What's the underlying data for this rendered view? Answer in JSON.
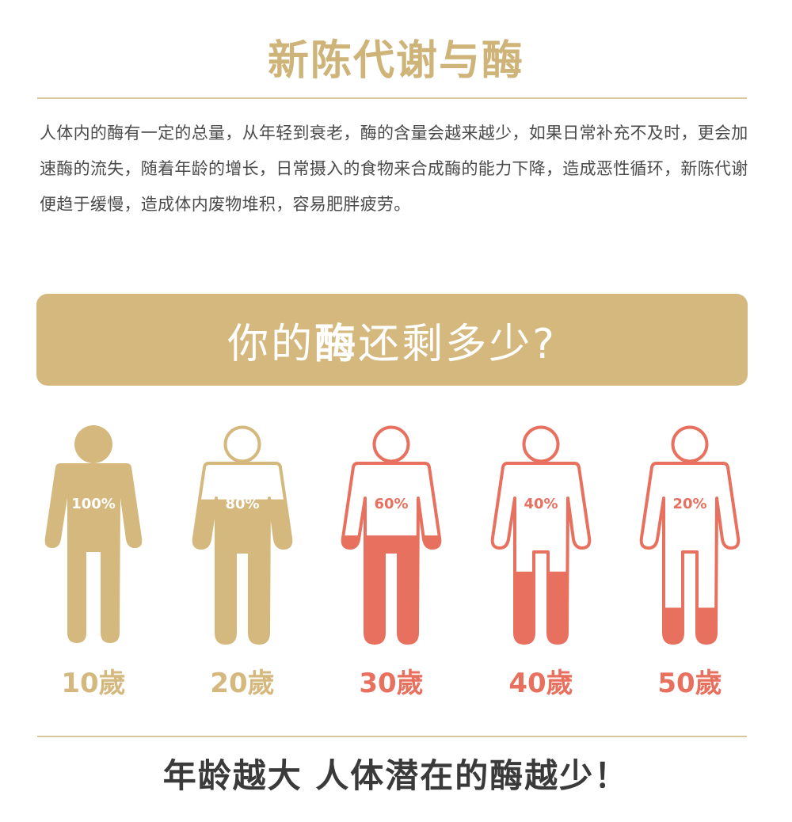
{
  "title": "新陈代谢与酶",
  "intro": "人体内的酶有一定的总量，从年轻到衰老，酶的含量会越来越少，如果日常补充不及时，更会加速酶的流失，随着年龄的增长，日常摄入的食物来合成酶的能力下降，造成恶性循环，新陈代谢便趋于缓慢，造成体内废物堆积，容易肥胖疲劳。",
  "banner": {
    "prefix": "你的",
    "highlight": "酶",
    "suffix": "还剩多少?"
  },
  "figures": [
    {
      "percent_label": "100%",
      "fill_fraction": 1.0,
      "age_label": "10歲",
      "color": "#d4b87e"
    },
    {
      "percent_label": "80%",
      "fill_fraction": 0.8,
      "age_label": "20歲",
      "color": "#d4b87e"
    },
    {
      "percent_label": "60%",
      "fill_fraction": 0.6,
      "age_label": "30歲",
      "color": "#e8705e"
    },
    {
      "percent_label": "40%",
      "fill_fraction": 0.4,
      "age_label": "40歲",
      "color": "#e8705e"
    },
    {
      "percent_label": "20%",
      "fill_fraction": 0.2,
      "age_label": "50歲",
      "color": "#e8705e"
    }
  ],
  "conclusion": "年龄越大 人体潜在的酶越少！",
  "colors": {
    "gold": "#d4b87e",
    "coral": "#e8705e",
    "text": "#4a4a4a",
    "dark": "#3a3a3a"
  }
}
